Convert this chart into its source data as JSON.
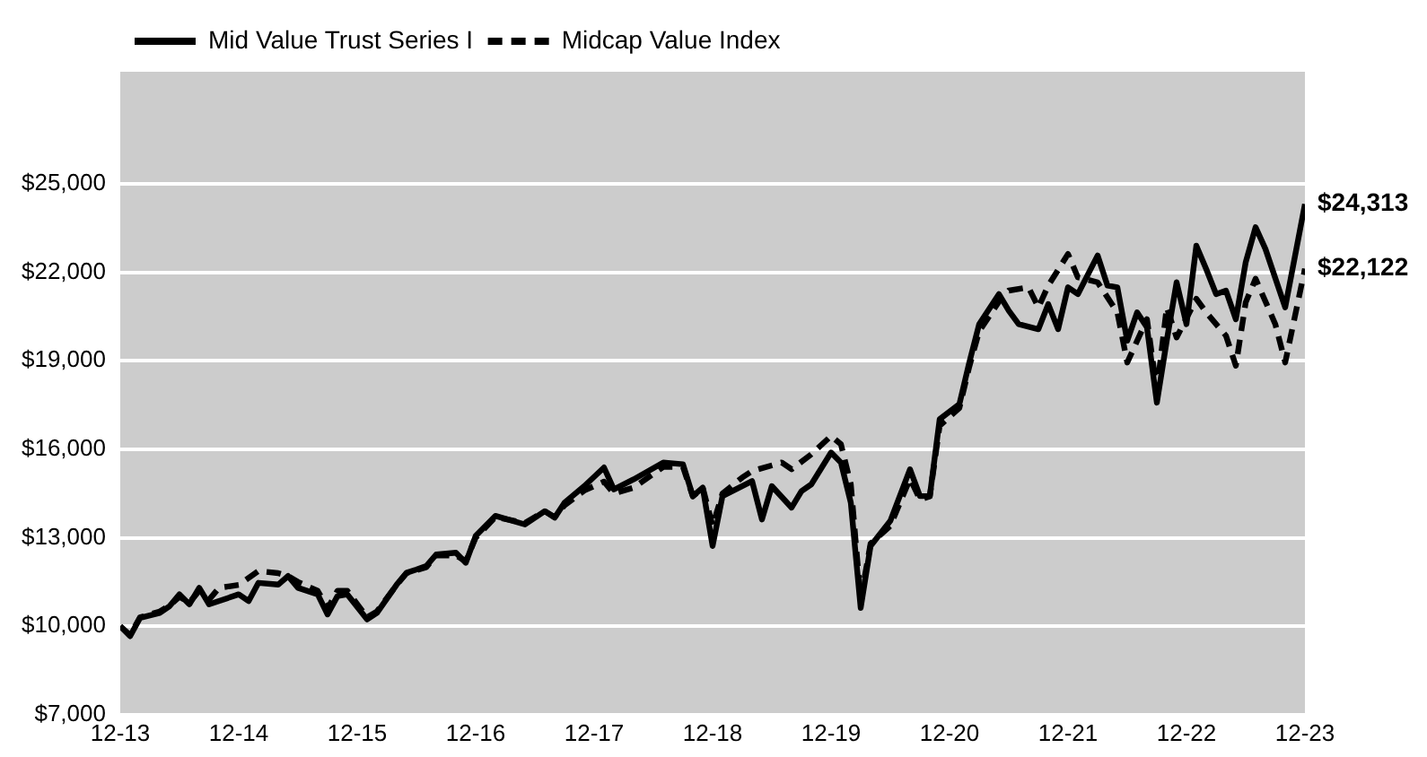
{
  "chart_data": {
    "type": "line",
    "xlim": [
      "2013-12",
      "2023-12"
    ],
    "xticks": [
      {
        "value": "2013-12",
        "label": "12-13"
      },
      {
        "value": "2014-12",
        "label": "12-14"
      },
      {
        "value": "2015-12",
        "label": "12-15"
      },
      {
        "value": "2016-12",
        "label": "12-16"
      },
      {
        "value": "2017-12",
        "label": "12-17"
      },
      {
        "value": "2018-12",
        "label": "12-18"
      },
      {
        "value": "2019-12",
        "label": "12-19"
      },
      {
        "value": "2020-12",
        "label": "12-20"
      },
      {
        "value": "2021-12",
        "label": "12-21"
      },
      {
        "value": "2022-12",
        "label": "12-22"
      },
      {
        "value": "2023-12",
        "label": "12-23"
      }
    ],
    "ylim": [
      7000,
      28800
    ],
    "yticks": [
      {
        "value": 7000,
        "label": "$7,000"
      },
      {
        "value": 10000,
        "label": "$10,000"
      },
      {
        "value": 13000,
        "label": "$13,000"
      },
      {
        "value": 16000,
        "label": "$16,000"
      },
      {
        "value": 19000,
        "label": "$19,000"
      },
      {
        "value": 22000,
        "label": "$22,000"
      },
      {
        "value": 25000,
        "label": "$25,000"
      }
    ],
    "grid": "y",
    "legend": "top left",
    "marker": "none",
    "series": [
      {
        "name": "Mid Value Trust Series I",
        "color": "#000000",
        "line_style": "solid",
        "x": [
          "2013-12",
          "2014-01",
          "2014-02",
          "2014-04",
          "2014-05",
          "2014-06",
          "2014-07",
          "2014-08",
          "2014-09",
          "2014-12",
          "2015-01",
          "2015-02",
          "2015-04",
          "2015-05",
          "2015-06",
          "2015-08",
          "2015-09",
          "2015-10",
          "2015-11",
          "2016-01",
          "2016-02",
          "2016-04",
          "2016-05",
          "2016-06",
          "2016-07",
          "2016-08",
          "2016-10",
          "2016-11",
          "2016-12",
          "2017-02",
          "2017-05",
          "2017-07",
          "2017-08",
          "2017-09",
          "2017-11",
          "2018-01",
          "2018-02",
          "2018-04",
          "2018-07",
          "2018-09",
          "2018-10",
          "2018-11",
          "2018-12",
          "2019-01",
          "2019-04",
          "2019-05",
          "2019-06",
          "2019-08",
          "2019-09",
          "2019-10",
          "2019-12",
          "2020-01",
          "2020-02",
          "2020-03",
          "2020-04",
          "2020-06",
          "2020-08",
          "2020-09",
          "2020-10",
          "2020-11",
          "2021-01",
          "2021-02",
          "2021-03",
          "2021-05",
          "2021-06",
          "2021-07",
          "2021-09",
          "2021-10",
          "2021-11",
          "2021-12",
          "2022-01",
          "2022-03",
          "2022-04",
          "2022-05",
          "2022-06",
          "2022-07",
          "2022-08",
          "2022-09",
          "2022-10",
          "2022-11",
          "2022-12",
          "2023-01",
          "2023-02",
          "2023-03",
          "2023-04",
          "2023-05",
          "2023-06",
          "2023-07",
          "2023-08",
          "2023-10",
          "2023-12"
        ],
        "values": [
          10000,
          9660,
          10280,
          10450,
          10680,
          11080,
          10740,
          11300,
          10740,
          11080,
          10850,
          11470,
          11410,
          11700,
          11300,
          11080,
          10400,
          11020,
          11080,
          10230,
          10450,
          11410,
          11810,
          11920,
          12040,
          12430,
          12490,
          12150,
          13060,
          13740,
          13450,
          13900,
          13680,
          14190,
          14750,
          15380,
          14640,
          14980,
          15550,
          15490,
          14410,
          14700,
          12720,
          14410,
          14920,
          13620,
          14750,
          14020,
          14580,
          14810,
          15890,
          15550,
          14190,
          10620,
          12720,
          13570,
          15320,
          14410,
          14410,
          17020,
          17530,
          18940,
          20240,
          21260,
          20700,
          20240,
          20070,
          20920,
          20070,
          21490,
          21260,
          22570,
          21550,
          21490,
          19680,
          20640,
          20130,
          17580,
          19680,
          21660,
          20240,
          22900,
          22110,
          21260,
          21380,
          20410,
          22340,
          23530,
          22790,
          20810,
          24313
        ],
        "value_labels": [
          null,
          null,
          null,
          null,
          null,
          null,
          null,
          null,
          null,
          null,
          null,
          null,
          null,
          null,
          null,
          null,
          null,
          null,
          null,
          null,
          null,
          null,
          null,
          null,
          null,
          null,
          null,
          null,
          null,
          null,
          null,
          null,
          null,
          null,
          null,
          null,
          null,
          null,
          null,
          null,
          null,
          null,
          null,
          null,
          null,
          null,
          null,
          null,
          null,
          null,
          null,
          null,
          null,
          null,
          null,
          null,
          null,
          null,
          null,
          null,
          null,
          null,
          null,
          null,
          null,
          null,
          null,
          null,
          null,
          null,
          null,
          null,
          null,
          null,
          null,
          null,
          null,
          null,
          null,
          null,
          null,
          null,
          null,
          null,
          null,
          null,
          null,
          null,
          null,
          null,
          "$24,313"
        ]
      },
      {
        "name": "Midcap Value Index",
        "color": "#000000",
        "line_style": "dashed",
        "x": [
          "2013-12",
          "2014-01",
          "2014-02",
          "2014-04",
          "2014-05",
          "2014-06",
          "2014-07",
          "2014-08",
          "2014-09",
          "2014-10",
          "2014-12",
          "2015-02",
          "2015-04",
          "2015-05",
          "2015-06",
          "2015-08",
          "2015-09",
          "2015-10",
          "2015-11",
          "2016-01",
          "2016-02",
          "2016-04",
          "2016-05",
          "2016-06",
          "2016-07",
          "2016-08",
          "2016-10",
          "2016-11",
          "2016-12",
          "2017-02",
          "2017-05",
          "2017-07",
          "2017-08",
          "2017-09",
          "2017-11",
          "2018-01",
          "2018-02",
          "2018-04",
          "2018-07",
          "2018-09",
          "2018-10",
          "2018-11",
          "2018-12",
          "2019-01",
          "2019-03",
          "2019-04",
          "2019-07",
          "2019-08",
          "2019-10",
          "2019-12",
          "2020-01",
          "2020-02",
          "2020-03",
          "2020-04",
          "2020-06",
          "2020-08",
          "2020-09",
          "2020-10",
          "2020-11",
          "2021-01",
          "2021-02",
          "2021-03",
          "2021-05",
          "2021-06",
          "2021-08",
          "2021-09",
          "2021-10",
          "2021-12",
          "2022-01",
          "2022-03",
          "2022-05",
          "2022-06",
          "2022-08",
          "2022-09",
          "2022-10",
          "2022-11",
          "2023-01",
          "2023-02",
          "2023-04",
          "2023-05",
          "2023-06",
          "2023-07",
          "2023-09",
          "2023-10",
          "2023-12"
        ],
        "values": [
          10000,
          9700,
          10300,
          10500,
          10700,
          11000,
          10800,
          11200,
          10900,
          11300,
          11400,
          11870,
          11800,
          11700,
          11500,
          11200,
          10600,
          11200,
          11200,
          10300,
          10500,
          11400,
          11800,
          11900,
          12000,
          12400,
          12400,
          12200,
          13000,
          13700,
          13500,
          13900,
          13700,
          14100,
          14600,
          14900,
          14500,
          14700,
          15400,
          15400,
          14400,
          14700,
          13400,
          14500,
          15040,
          15260,
          15550,
          15320,
          15830,
          16450,
          16170,
          14810,
          10900,
          12800,
          13400,
          15000,
          14300,
          14400,
          16800,
          17400,
          18800,
          20000,
          21000,
          21380,
          21490,
          20810,
          21550,
          22620,
          21830,
          21660,
          20640,
          18940,
          20410,
          17980,
          20810,
          19790,
          21100,
          20640,
          19850,
          18830,
          20980,
          21780,
          20240,
          18940,
          22122
        ],
        "value_labels": [
          null,
          null,
          null,
          null,
          null,
          null,
          null,
          null,
          null,
          null,
          null,
          null,
          null,
          null,
          null,
          null,
          null,
          null,
          null,
          null,
          null,
          null,
          null,
          null,
          null,
          null,
          null,
          null,
          null,
          null,
          null,
          null,
          null,
          null,
          null,
          null,
          null,
          null,
          null,
          null,
          null,
          null,
          null,
          null,
          null,
          null,
          null,
          null,
          null,
          null,
          null,
          null,
          null,
          null,
          null,
          null,
          null,
          null,
          null,
          null,
          null,
          null,
          null,
          null,
          null,
          null,
          null,
          null,
          null,
          null,
          null,
          null,
          null,
          null,
          null,
          null,
          null,
          null,
          null,
          null,
          null,
          null,
          null,
          null,
          "$22,122"
        ]
      }
    ]
  }
}
